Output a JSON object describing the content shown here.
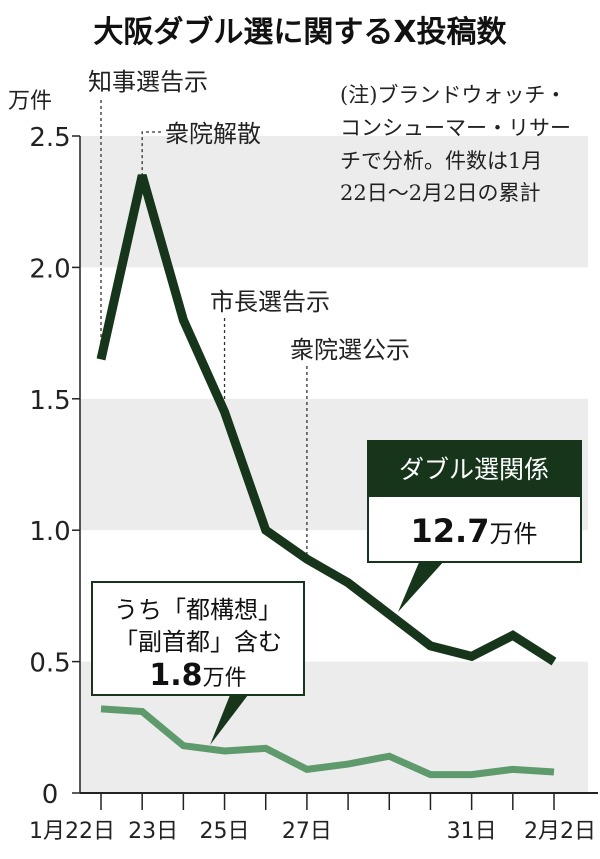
{
  "chart_data": {
    "type": "line",
    "title": "大阪ダブル選に関するX投稿数",
    "ylabel": "万件",
    "ylim": [
      0,
      2.5
    ],
    "yticks": [
      "0",
      "0.5",
      "1.0",
      "1.5",
      "2.0",
      "2.5"
    ],
    "ytick_values": [
      0,
      0.5,
      1.0,
      1.5,
      2.0,
      2.5
    ],
    "x": [
      "1/22",
      "1/23",
      "1/24",
      "1/25",
      "1/26",
      "1/27",
      "1/28",
      "1/29",
      "1/30",
      "1/31",
      "2/1",
      "2/2"
    ],
    "xtick_labels": [
      "1月22日",
      "23日",
      "",
      "25日",
      "",
      "27日",
      "",
      "",
      "",
      "31日",
      "",
      "2月2日"
    ],
    "grid": "alternating gray bands",
    "series": [
      {
        "name": "ダブル選関係",
        "total": "12.7",
        "total_unit": "万件",
        "color": "#16351a",
        "values": [
          1.65,
          2.35,
          1.8,
          1.45,
          1.0,
          0.89,
          0.8,
          0.68,
          0.56,
          0.52,
          0.6,
          0.5
        ]
      },
      {
        "name": "うち「都構想」「副首都」含む",
        "name_line1": "うち「都構想」",
        "name_line2": "「副首都」含む",
        "total": "1.8",
        "total_unit": "万件",
        "color": "#5e9a6c",
        "values": [
          0.32,
          0.31,
          0.18,
          0.16,
          0.17,
          0.09,
          0.11,
          0.14,
          0.07,
          0.07,
          0.09,
          0.08
        ]
      }
    ],
    "events": [
      {
        "label": "知事選告示",
        "x": "1/22"
      },
      {
        "label": "衆院解散",
        "x": "1/23"
      },
      {
        "label": "市長選告示",
        "x": "1/25"
      },
      {
        "label": "衆院選公示",
        "x": "1/27"
      }
    ],
    "note": [
      "(注)ブランドウォッチ・",
      "コンシューマー・リサー",
      "チで分析。件数は1月",
      "22日〜2月2日の累計"
    ]
  }
}
